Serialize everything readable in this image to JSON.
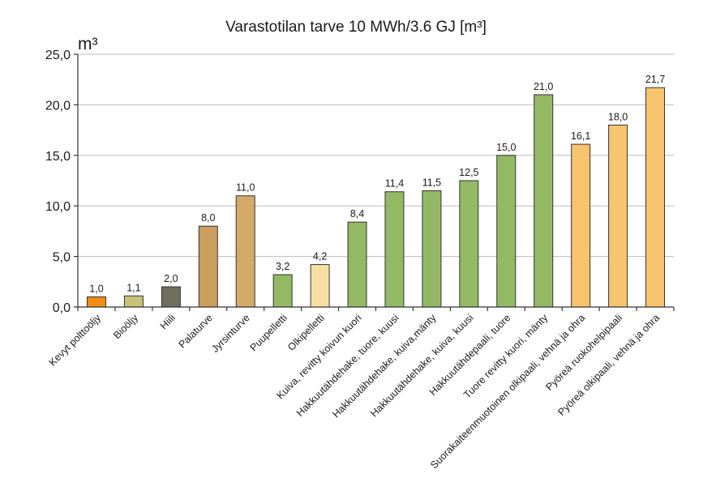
{
  "chart_data": {
    "type": "bar",
    "title": "Varastotilan tarve 10 MWh/3.6 GJ [m³]",
    "ylabel": "m³",
    "xlabel": "",
    "ylim": [
      0,
      25
    ],
    "yticks": [
      0,
      5,
      10,
      15,
      20,
      25
    ],
    "ytick_labels": [
      "0,0",
      "5,0",
      "10,0",
      "15,0",
      "20,0",
      "25,0"
    ],
    "grid": true,
    "categories": [
      "Kevyt polttoöljy",
      "Bioöljy",
      "Hiili",
      "Palaturve",
      "Jyrsinturve",
      "Puupelletti",
      "Olkipelletti",
      "Kuiva, revitty koivun kuori",
      "Hakkuutähdehake, tuore, kuusi",
      "Hakkuutähdehake, kuiva,mänty",
      "Hakkuutähdehake, kuiva, kuusi",
      "Hakkuutähdepaali, tuore",
      "Tuore revitty kuori, mänty",
      "Suorakaiteenmuotoinen olkipaali, vehnä ja ohra",
      "Pyöreä ruokohelpipaali",
      "Pyöreä olkipaali, vehnä ja ohra"
    ],
    "values": [
      1.0,
      1.1,
      2.0,
      8.0,
      11.0,
      3.2,
      4.2,
      8.4,
      11.4,
      11.5,
      12.5,
      15.0,
      21.0,
      16.1,
      18.0,
      21.7
    ],
    "value_labels": [
      "1,0",
      "1,1",
      "2,0",
      "8,0",
      "11,0",
      "3,2",
      "4,2",
      "8,4",
      "11,4",
      "11,5",
      "12,5",
      "15,0",
      "21,0",
      "16,1",
      "18,0",
      "21,7"
    ],
    "colors": [
      "#f28c13",
      "#c7c277",
      "#6e6e5e",
      "#c9a060",
      "#d4aa6a",
      "#93b964",
      "#f7dfa4",
      "#93b964",
      "#93b964",
      "#93b964",
      "#93b964",
      "#93b964",
      "#93b964",
      "#f8c46e",
      "#f8c46e",
      "#f8c46e"
    ]
  }
}
